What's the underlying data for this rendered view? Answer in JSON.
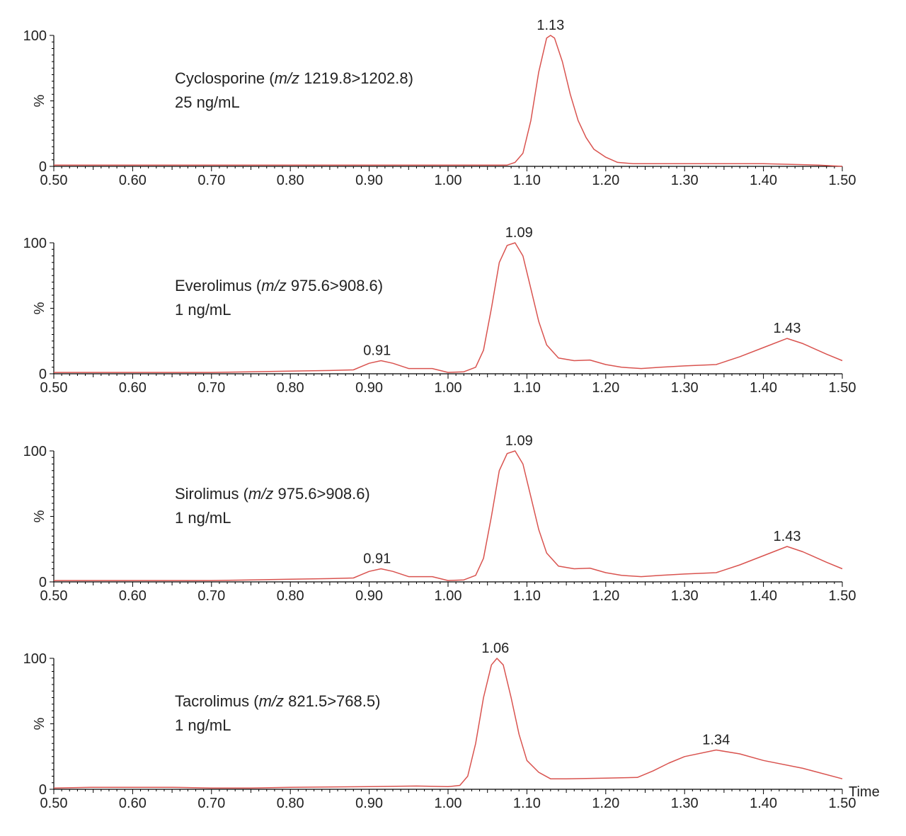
{
  "x_axis_title": "Time",
  "y_axis_label": "%",
  "chart_data": [
    {
      "type": "line",
      "compound": "Cyclosporine",
      "mz_prefix": "(",
      "mz_label": "m/z",
      "mz_value": " 1219.8>1202.8)",
      "concentration": "25 ng/mL",
      "xlim": [
        0.5,
        1.5
      ],
      "ylim": [
        0,
        100
      ],
      "x_ticks": [
        "0.50",
        "0.60",
        "0.70",
        "0.80",
        "0.90",
        "1.00",
        "1.10",
        "1.20",
        "1.30",
        "1.40",
        "1.50"
      ],
      "y_ticks": [
        "0",
        "100"
      ],
      "line_color": "#d9534f",
      "peak_labels": [
        {
          "x": 1.13,
          "y": 100,
          "label": "1.13"
        }
      ],
      "points": [
        [
          0.5,
          1
        ],
        [
          0.6,
          1
        ],
        [
          0.7,
          1
        ],
        [
          0.8,
          1
        ],
        [
          0.9,
          1
        ],
        [
          1.0,
          1
        ],
        [
          1.05,
          1
        ],
        [
          1.075,
          1
        ],
        [
          1.085,
          3
        ],
        [
          1.095,
          10
        ],
        [
          1.105,
          35
        ],
        [
          1.115,
          72
        ],
        [
          1.125,
          98
        ],
        [
          1.13,
          100
        ],
        [
          1.135,
          98
        ],
        [
          1.145,
          80
        ],
        [
          1.155,
          55
        ],
        [
          1.165,
          35
        ],
        [
          1.175,
          22
        ],
        [
          1.185,
          13
        ],
        [
          1.2,
          7
        ],
        [
          1.215,
          3
        ],
        [
          1.235,
          2
        ],
        [
          1.3,
          2
        ],
        [
          1.4,
          2
        ],
        [
          1.47,
          1
        ],
        [
          1.5,
          0
        ]
      ]
    },
    {
      "type": "line",
      "compound": "Everolimus",
      "mz_prefix": "(",
      "mz_label": "m/z",
      "mz_value": " 975.6>908.6)",
      "concentration": "1 ng/mL",
      "xlim": [
        0.5,
        1.5
      ],
      "ylim": [
        0,
        100
      ],
      "x_ticks": [
        "0.50",
        "0.60",
        "0.70",
        "0.80",
        "0.90",
        "1.00",
        "1.10",
        "1.20",
        "1.30",
        "1.40",
        "1.50"
      ],
      "y_ticks": [
        "0",
        "100"
      ],
      "line_color": "#d9534f",
      "peak_labels": [
        {
          "x": 0.91,
          "y": 10,
          "label": "0.91"
        },
        {
          "x": 1.09,
          "y": 100,
          "label": "1.09"
        },
        {
          "x": 1.43,
          "y": 27,
          "label": "1.43"
        }
      ],
      "points": [
        [
          0.5,
          1
        ],
        [
          0.6,
          1
        ],
        [
          0.7,
          1
        ],
        [
          0.75,
          1.5
        ],
        [
          0.8,
          2
        ],
        [
          0.85,
          2.5
        ],
        [
          0.88,
          3
        ],
        [
          0.9,
          8
        ],
        [
          0.915,
          10
        ],
        [
          0.93,
          8
        ],
        [
          0.95,
          4
        ],
        [
          0.98,
          4
        ],
        [
          1.0,
          1
        ],
        [
          1.02,
          1.5
        ],
        [
          1.035,
          5
        ],
        [
          1.045,
          18
        ],
        [
          1.055,
          50
        ],
        [
          1.065,
          85
        ],
        [
          1.075,
          98
        ],
        [
          1.085,
          100
        ],
        [
          1.095,
          90
        ],
        [
          1.105,
          65
        ],
        [
          1.115,
          40
        ],
        [
          1.125,
          22
        ],
        [
          1.14,
          12
        ],
        [
          1.16,
          10
        ],
        [
          1.18,
          10.5
        ],
        [
          1.2,
          7
        ],
        [
          1.22,
          5
        ],
        [
          1.245,
          4
        ],
        [
          1.27,
          5
        ],
        [
          1.3,
          6
        ],
        [
          1.34,
          7
        ],
        [
          1.37,
          13
        ],
        [
          1.4,
          20
        ],
        [
          1.43,
          27
        ],
        [
          1.45,
          23
        ],
        [
          1.48,
          15
        ],
        [
          1.5,
          10
        ]
      ]
    },
    {
      "type": "line",
      "compound": "Sirolimus",
      "mz_prefix": "(",
      "mz_label": "m/z",
      "mz_value": " 975.6>908.6)",
      "concentration": "1 ng/mL",
      "xlim": [
        0.5,
        1.5
      ],
      "ylim": [
        0,
        100
      ],
      "x_ticks": [
        "0.50",
        "0.60",
        "0.70",
        "0.80",
        "0.90",
        "1.00",
        "1.10",
        "1.20",
        "1.30",
        "1.40",
        "1.50"
      ],
      "y_ticks": [
        "0",
        "100"
      ],
      "line_color": "#d9534f",
      "peak_labels": [
        {
          "x": 0.91,
          "y": 10,
          "label": "0.91"
        },
        {
          "x": 1.09,
          "y": 100,
          "label": "1.09"
        },
        {
          "x": 1.43,
          "y": 27,
          "label": "1.43"
        }
      ],
      "points": [
        [
          0.5,
          1
        ],
        [
          0.6,
          1
        ],
        [
          0.7,
          1
        ],
        [
          0.75,
          1.5
        ],
        [
          0.8,
          2
        ],
        [
          0.85,
          2.5
        ],
        [
          0.88,
          3
        ],
        [
          0.9,
          8
        ],
        [
          0.915,
          10
        ],
        [
          0.93,
          8
        ],
        [
          0.95,
          4
        ],
        [
          0.98,
          4
        ],
        [
          1.0,
          1
        ],
        [
          1.02,
          1.5
        ],
        [
          1.035,
          5
        ],
        [
          1.045,
          18
        ],
        [
          1.055,
          50
        ],
        [
          1.065,
          85
        ],
        [
          1.075,
          98
        ],
        [
          1.085,
          100
        ],
        [
          1.095,
          90
        ],
        [
          1.105,
          65
        ],
        [
          1.115,
          40
        ],
        [
          1.125,
          22
        ],
        [
          1.14,
          12
        ],
        [
          1.16,
          10
        ],
        [
          1.18,
          10.5
        ],
        [
          1.2,
          7
        ],
        [
          1.22,
          5
        ],
        [
          1.245,
          4
        ],
        [
          1.27,
          5
        ],
        [
          1.3,
          6
        ],
        [
          1.34,
          7
        ],
        [
          1.37,
          13
        ],
        [
          1.4,
          20
        ],
        [
          1.43,
          27
        ],
        [
          1.45,
          23
        ],
        [
          1.48,
          15
        ],
        [
          1.5,
          10
        ]
      ]
    },
    {
      "type": "line",
      "compound": "Tacrolimus",
      "mz_prefix": "(",
      "mz_label": "m/z",
      "mz_value": " 821.5>768.5)",
      "concentration": "1 ng/mL",
      "xlim": [
        0.5,
        1.5
      ],
      "ylim": [
        0,
        100
      ],
      "x_ticks": [
        "0.50",
        "0.60",
        "0.70",
        "0.80",
        "0.90",
        "1.00",
        "1.10",
        "1.20",
        "1.30",
        "1.40",
        "1.50"
      ],
      "y_ticks": [
        "0",
        "100"
      ],
      "line_color": "#d9534f",
      "peak_labels": [
        {
          "x": 1.06,
          "y": 100,
          "label": "1.06"
        },
        {
          "x": 1.34,
          "y": 30,
          "label": "1.34"
        }
      ],
      "points": [
        [
          0.5,
          1
        ],
        [
          0.55,
          1.5
        ],
        [
          0.6,
          1.5
        ],
        [
          0.65,
          1.5
        ],
        [
          0.7,
          1
        ],
        [
          0.75,
          1
        ],
        [
          0.8,
          1.5
        ],
        [
          0.9,
          2
        ],
        [
          0.96,
          2.5
        ],
        [
          1.0,
          2
        ],
        [
          1.015,
          3
        ],
        [
          1.025,
          10
        ],
        [
          1.035,
          35
        ],
        [
          1.045,
          70
        ],
        [
          1.055,
          95
        ],
        [
          1.062,
          100
        ],
        [
          1.07,
          95
        ],
        [
          1.08,
          70
        ],
        [
          1.09,
          42
        ],
        [
          1.1,
          22
        ],
        [
          1.115,
          13
        ],
        [
          1.13,
          8
        ],
        [
          1.15,
          8
        ],
        [
          1.2,
          8.5
        ],
        [
          1.24,
          9
        ],
        [
          1.26,
          14
        ],
        [
          1.28,
          20
        ],
        [
          1.3,
          25
        ],
        [
          1.34,
          30
        ],
        [
          1.37,
          27
        ],
        [
          1.4,
          22
        ],
        [
          1.45,
          16
        ],
        [
          1.5,
          8
        ]
      ]
    }
  ]
}
